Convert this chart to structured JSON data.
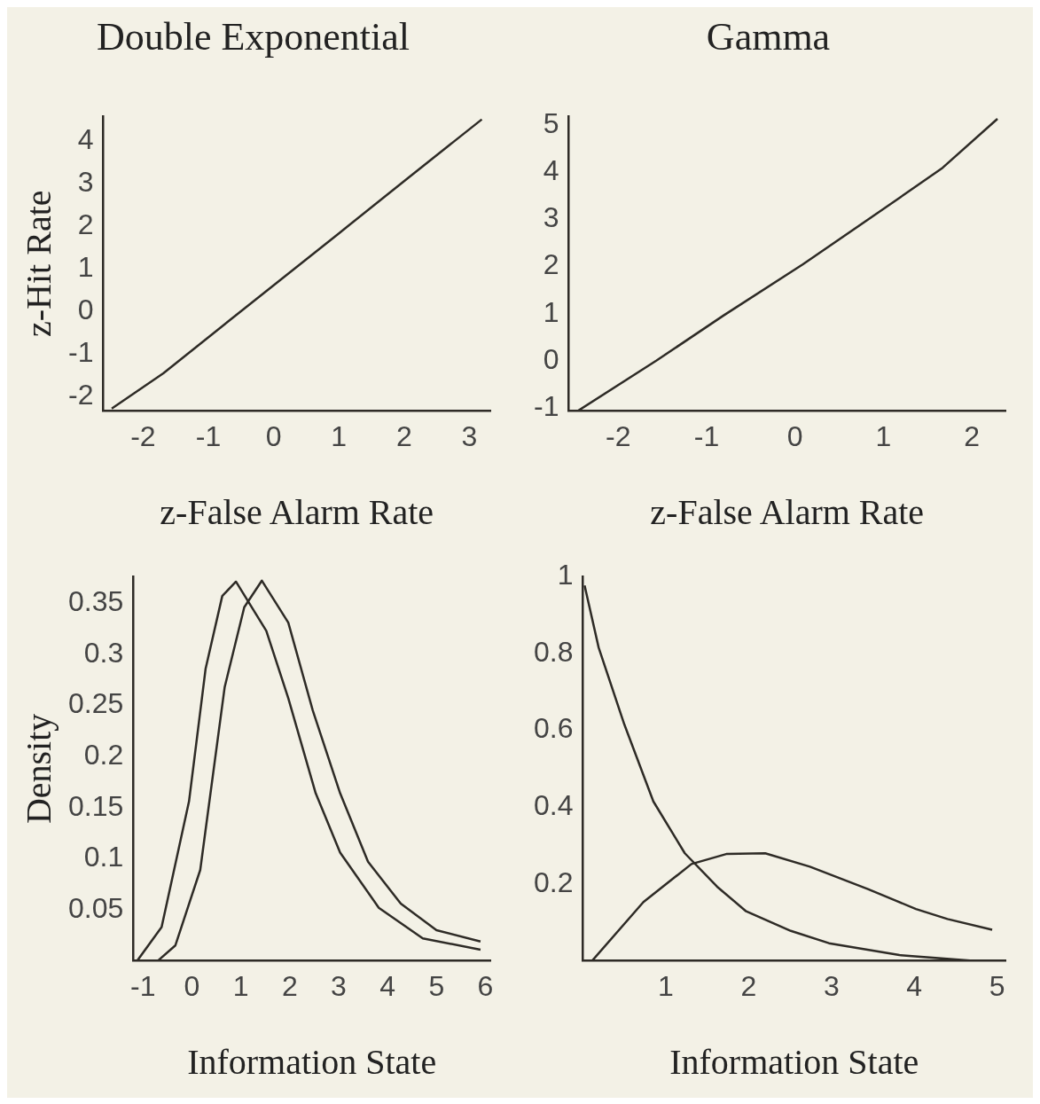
{
  "chart_data": [
    {
      "type": "line",
      "title": "Double Exponential",
      "xlabel": "z-False Alarm Rate",
      "ylabel": "z-Hit Rate",
      "xlim": [
        -2.61,
        3.32
      ],
      "ylim": [
        -2.34,
        4.6
      ],
      "xticks": [
        -2,
        -1,
        0,
        1,
        2,
        3
      ],
      "yticks": [
        -2,
        -1,
        0,
        1,
        2,
        3,
        4
      ],
      "series": [
        {
          "color": "#2e2b26",
          "x": [
            -2.48,
            -1.69,
            0,
            1,
            2,
            3.19
          ],
          "values": [
            -2.28,
            -1.45,
            0.62,
            1.84,
            3.07,
            4.52
          ]
        }
      ]
    },
    {
      "type": "line",
      "title": "Gamma",
      "xlabel": "z-False Alarm Rate",
      "xlim": [
        -2.56,
        2.38
      ],
      "ylim": [
        -1.07,
        5.2
      ],
      "xticks": [
        -2,
        -1,
        0,
        1,
        2
      ],
      "yticks": [
        -1,
        0,
        1,
        2,
        3,
        4,
        5
      ],
      "series": [
        {
          "color": "#2e2b26",
          "x": [
            -2.46,
            -1.57,
            -0.81,
            0.09,
            1.02,
            1.67,
            2.29
          ],
          "values": [
            -1.07,
            0,
            0.96,
            2.05,
            3.25,
            4.1,
            5.14
          ]
        }
      ]
    },
    {
      "type": "line",
      "xlabel": "Information State",
      "ylabel": "Density",
      "xlim": [
        -1.2,
        6.1
      ],
      "ylim": [
        0,
        0.376
      ],
      "xticks": [
        -1,
        0,
        1,
        2,
        3,
        4,
        5,
        6
      ],
      "yticks": [
        0.05,
        0.1,
        0.15,
        0.2,
        0.25,
        0.3,
        0.35
      ],
      "series": [
        {
          "color": "#2e2b26",
          "x": [
            -1.12,
            -0.62,
            -0.06,
            0.28,
            0.62,
            0.9,
            1.52,
            1.97,
            2.53,
            3.03,
            3.82,
            4.72,
            5.9
          ],
          "values": [
            0,
            0.033,
            0.156,
            0.286,
            0.357,
            0.371,
            0.323,
            0.257,
            0.164,
            0.106,
            0.052,
            0.022,
            0.011
          ]
        },
        {
          "color": "#2e2b26",
          "x": [
            -0.7,
            -0.34,
            0.17,
            0.67,
            1.07,
            1.43,
            1.97,
            2.47,
            3.03,
            3.6,
            4.27,
            5,
            5.9
          ],
          "values": [
            0,
            0.015,
            0.089,
            0.268,
            0.346,
            0.372,
            0.331,
            0.245,
            0.164,
            0.097,
            0.056,
            0.03,
            0.019
          ]
        }
      ]
    },
    {
      "type": "line",
      "xlabel": "Information State",
      "xlim": [
        0,
        5.1
      ],
      "ylim": [
        0,
        1
      ],
      "xticks": [
        1,
        2,
        3,
        4,
        5
      ],
      "yticks": [
        0.2,
        0.4,
        0.6,
        0.8,
        1
      ],
      "series": [
        {
          "color": "#2e2b26",
          "x": [
            0.02,
            0.19,
            0.5,
            0.85,
            1.23,
            1.62,
            1.97,
            2.51,
            2.97,
            3.82,
            4.71
          ],
          "values": [
            0.977,
            0.815,
            0.615,
            0.415,
            0.28,
            0.193,
            0.129,
            0.078,
            0.046,
            0.015,
            0.0
          ]
        },
        {
          "color": "#2e2b26",
          "x": [
            0.11,
            0.73,
            1.31,
            1.73,
            2.2,
            2.74,
            3.44,
            4.02,
            4.4,
            4.94
          ],
          "values": [
            0,
            0.153,
            0.252,
            0.278,
            0.28,
            0.245,
            0.187,
            0.135,
            0.109,
            0.081
          ]
        }
      ]
    }
  ]
}
